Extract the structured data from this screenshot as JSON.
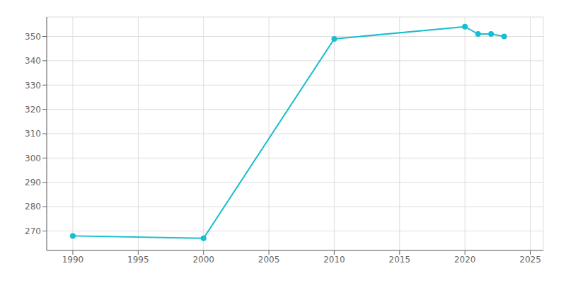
{
  "chart_data": {
    "type": "line",
    "x": [
      1990,
      2000,
      2010,
      2020,
      2021,
      2022,
      2023
    ],
    "values": [
      268,
      267,
      349,
      354,
      351,
      351,
      350
    ],
    "color": "#17BECF",
    "marker": "circle",
    "xlim": [
      1988,
      2026
    ],
    "ylim": [
      262,
      358
    ],
    "xticks": [
      1990,
      1995,
      2000,
      2005,
      2010,
      2015,
      2020,
      2025
    ],
    "yticks": [
      270,
      280,
      290,
      300,
      310,
      320,
      330,
      340,
      350
    ],
    "grid": true
  }
}
